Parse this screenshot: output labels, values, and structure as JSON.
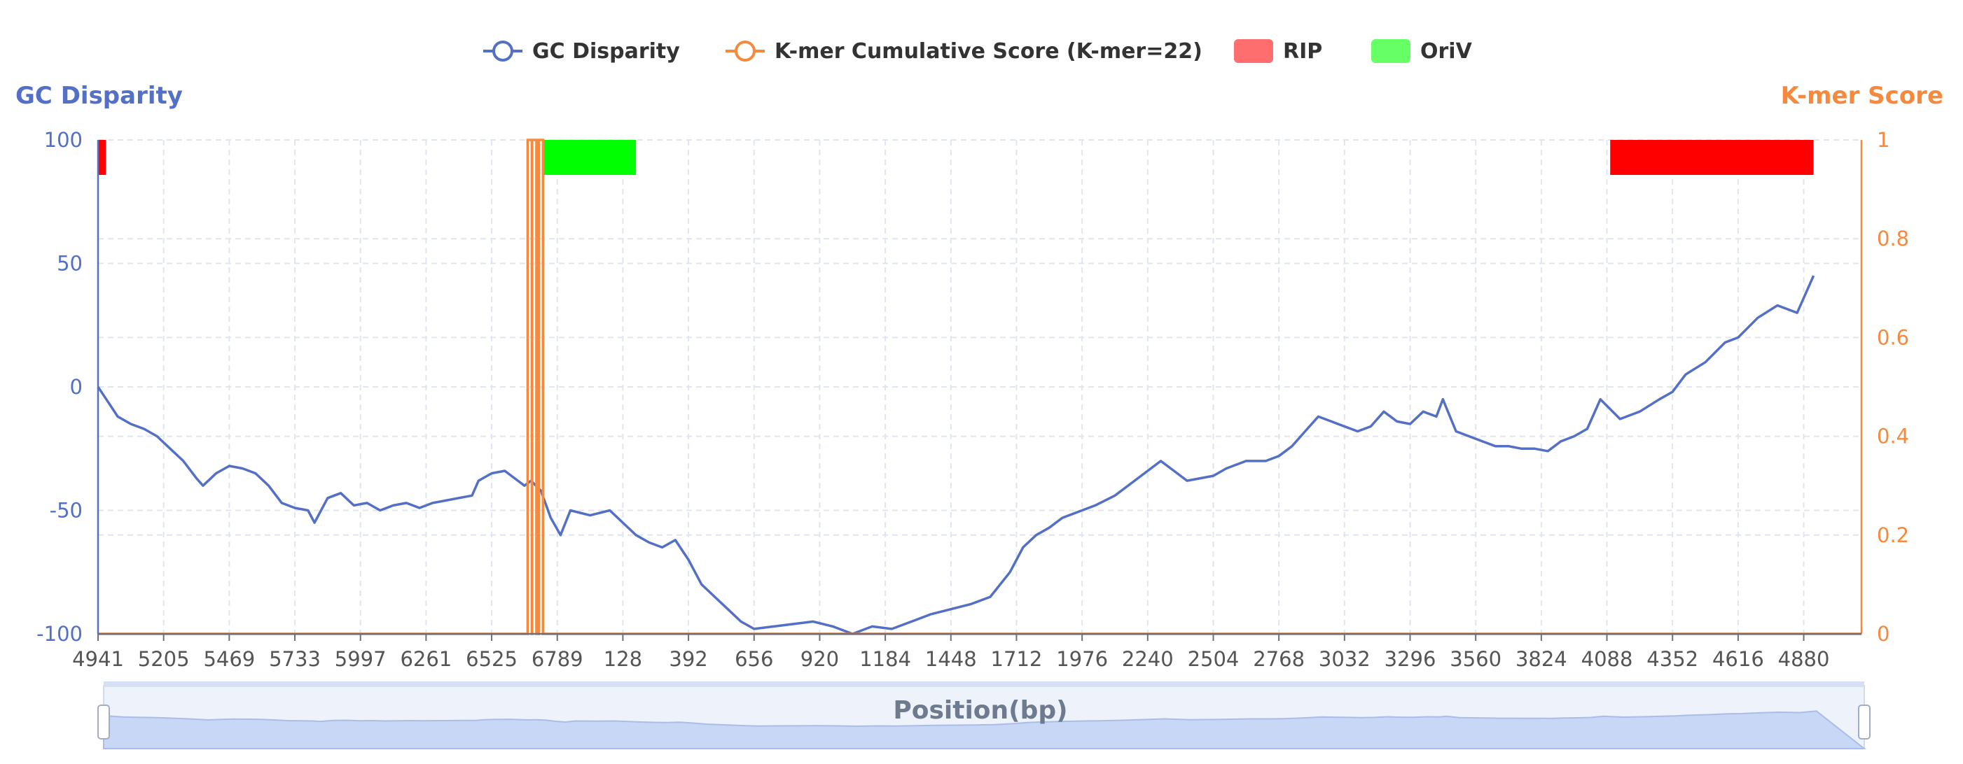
{
  "chart_data": {
    "type": "line",
    "legend": {
      "placement": "top-center",
      "items": [
        {
          "label": "GC Disparity",
          "kind": "line",
          "color": "#5470c6"
        },
        {
          "label": "K-mer Cumulative Score (K-mer=22)",
          "kind": "line",
          "color": "#f58a3f"
        },
        {
          "label": "RIP",
          "kind": "box",
          "color": "#ff6e6e"
        },
        {
          "label": "OriV",
          "kind": "box",
          "color": "#66ff66"
        }
      ]
    },
    "y_left": {
      "label": "GC Disparity",
      "min": -100,
      "max": 100,
      "ticks": [
        "100",
        "50",
        "0",
        "-50",
        "-100"
      ],
      "color": "#5470c6"
    },
    "y_right": {
      "label": "K-mer Score",
      "min": 0,
      "max": 1,
      "ticks": [
        "1",
        "0.8",
        "0.6",
        "0.4",
        "0.2",
        "0"
      ],
      "color": "#f58a3f"
    },
    "x_axis": {
      "ticks": [
        "4941",
        "5205",
        "5469",
        "5733",
        "5997",
        "6261",
        "6525",
        "6789",
        "128",
        "392",
        "656",
        "920",
        "1184",
        "1448",
        "1712",
        "1976",
        "2240",
        "2504",
        "2768",
        "3032",
        "3296",
        "3560",
        "3824",
        "4088",
        "4352",
        "4616",
        "4880"
      ],
      "note": "circular sequence coordinates; axis wraps from 6789 to the origin"
    },
    "grid": true,
    "regions": [
      {
        "name": "RIP",
        "start_tick": 0.0,
        "end_tick": 0.12,
        "color": "#ff0000"
      },
      {
        "name": "OriV",
        "start_tick": 6.8,
        "end_tick": 8.2,
        "color": "#00ff00"
      },
      {
        "name": "RIP",
        "start_tick": 23.05,
        "end_tick": 26.15,
        "color": "#ff0000"
      }
    ],
    "series": [
      {
        "name": "GC Disparity",
        "axis": "left",
        "points": [
          [
            0,
            0
          ],
          [
            0.15,
            -6
          ],
          [
            0.3,
            -12
          ],
          [
            0.5,
            -15
          ],
          [
            0.7,
            -17
          ],
          [
            0.9,
            -20
          ],
          [
            1.1,
            -25
          ],
          [
            1.3,
            -30
          ],
          [
            1.5,
            -37
          ],
          [
            1.6,
            -40
          ],
          [
            1.8,
            -35
          ],
          [
            2.0,
            -32
          ],
          [
            2.2,
            -33
          ],
          [
            2.4,
            -35
          ],
          [
            2.6,
            -40
          ],
          [
            2.8,
            -47
          ],
          [
            3.0,
            -49
          ],
          [
            3.2,
            -50
          ],
          [
            3.3,
            -55
          ],
          [
            3.5,
            -45
          ],
          [
            3.7,
            -43
          ],
          [
            3.9,
            -48
          ],
          [
            4.1,
            -47
          ],
          [
            4.3,
            -50
          ],
          [
            4.5,
            -48
          ],
          [
            4.7,
            -47
          ],
          [
            4.9,
            -49
          ],
          [
            5.1,
            -47
          ],
          [
            5.3,
            -46
          ],
          [
            5.5,
            -45
          ],
          [
            5.7,
            -44
          ],
          [
            5.8,
            -38
          ],
          [
            6.0,
            -35
          ],
          [
            6.2,
            -34
          ],
          [
            6.4,
            -38
          ],
          [
            6.5,
            -40
          ],
          [
            6.6,
            -38
          ],
          [
            6.75,
            -42
          ],
          [
            6.9,
            -53
          ],
          [
            7.05,
            -60
          ],
          [
            7.2,
            -50
          ],
          [
            7.5,
            -52
          ],
          [
            7.8,
            -50
          ],
          [
            8.0,
            -55
          ],
          [
            8.2,
            -60
          ],
          [
            8.4,
            -63
          ],
          [
            8.6,
            -65
          ],
          [
            8.8,
            -62
          ],
          [
            9.0,
            -70
          ],
          [
            9.2,
            -80
          ],
          [
            9.4,
            -85
          ],
          [
            9.6,
            -90
          ],
          [
            9.8,
            -95
          ],
          [
            10.0,
            -98
          ],
          [
            10.3,
            -97
          ],
          [
            10.6,
            -96
          ],
          [
            10.9,
            -95
          ],
          [
            11.2,
            -97
          ],
          [
            11.5,
            -100
          ],
          [
            11.8,
            -97
          ],
          [
            12.1,
            -98
          ],
          [
            12.4,
            -95
          ],
          [
            12.7,
            -92
          ],
          [
            13.0,
            -90
          ],
          [
            13.3,
            -88
          ],
          [
            13.6,
            -85
          ],
          [
            13.9,
            -75
          ],
          [
            14.1,
            -65
          ],
          [
            14.3,
            -60
          ],
          [
            14.5,
            -57
          ],
          [
            14.7,
            -53
          ],
          [
            15.0,
            -50
          ],
          [
            15.2,
            -48
          ],
          [
            15.5,
            -44
          ],
          [
            15.8,
            -38
          ],
          [
            16.0,
            -34
          ],
          [
            16.2,
            -30
          ],
          [
            16.4,
            -34
          ],
          [
            16.6,
            -38
          ],
          [
            16.8,
            -37
          ],
          [
            17.0,
            -36
          ],
          [
            17.2,
            -33
          ],
          [
            17.5,
            -30
          ],
          [
            17.8,
            -30
          ],
          [
            18.0,
            -28
          ],
          [
            18.2,
            -24
          ],
          [
            18.4,
            -18
          ],
          [
            18.6,
            -12
          ],
          [
            18.8,
            -14
          ],
          [
            19.0,
            -16
          ],
          [
            19.2,
            -18
          ],
          [
            19.4,
            -16
          ],
          [
            19.6,
            -10
          ],
          [
            19.8,
            -14
          ],
          [
            20.0,
            -15
          ],
          [
            20.2,
            -10
          ],
          [
            20.4,
            -12
          ],
          [
            20.5,
            -5
          ],
          [
            20.7,
            -18
          ],
          [
            20.9,
            -20
          ],
          [
            21.1,
            -22
          ],
          [
            21.3,
            -24
          ],
          [
            21.5,
            -24
          ],
          [
            21.7,
            -25
          ],
          [
            21.9,
            -25
          ],
          [
            22.1,
            -26
          ],
          [
            22.3,
            -22
          ],
          [
            22.5,
            -20
          ],
          [
            22.7,
            -17
          ],
          [
            22.9,
            -5
          ],
          [
            23.2,
            -13
          ],
          [
            23.5,
            -10
          ],
          [
            23.8,
            -5
          ],
          [
            24.0,
            -2
          ],
          [
            24.2,
            5
          ],
          [
            24.5,
            10
          ],
          [
            24.8,
            18
          ],
          [
            25.0,
            20
          ],
          [
            25.3,
            28
          ],
          [
            25.6,
            33
          ],
          [
            25.9,
            30
          ],
          [
            26.15,
            45
          ]
        ]
      },
      {
        "name": "K-mer Cumulative Score (K-mer=22)",
        "axis": "right",
        "spikes_at_tick": [
          6.58,
          6.65,
          6.75
        ],
        "spike_value": 1,
        "baseline": 0
      }
    ],
    "dataZoom": {
      "label": "Position(bp)"
    }
  }
}
